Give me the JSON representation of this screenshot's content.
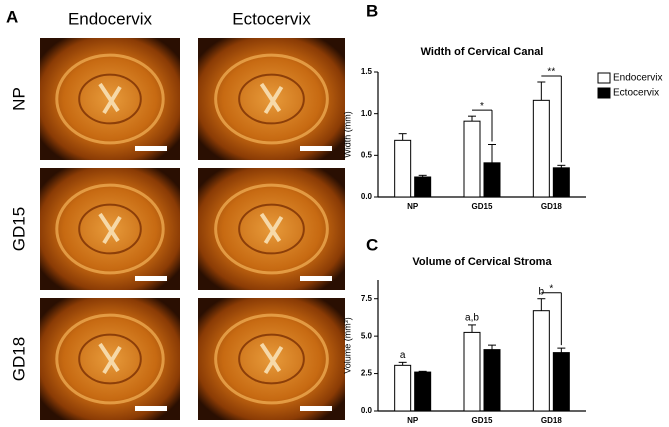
{
  "panel_labels": [
    "A",
    "B",
    "C"
  ],
  "image_grid": {
    "columns": [
      "Endocervix",
      "Ectocervix"
    ],
    "rows": [
      "NP",
      "GD15",
      "GD18"
    ]
  },
  "chart_data": [
    {
      "type": "bar",
      "title": "Width of Cervical Canal",
      "ylabel": "Width (mm)",
      "categories": [
        "NP",
        "GD15",
        "GD18"
      ],
      "series": [
        {
          "name": "Endocervix",
          "color": "#ffffff",
          "values": [
            0.68,
            0.91,
            1.16
          ],
          "errors": [
            0.08,
            0.06,
            0.22
          ]
        },
        {
          "name": "Ectocervix",
          "color": "#000000",
          "values": [
            0.24,
            0.41,
            0.35
          ],
          "errors": [
            0.02,
            0.22,
            0.03
          ]
        }
      ],
      "significance": [
        null,
        "*",
        "**"
      ],
      "ylim": [
        0,
        1.5
      ],
      "yticks": [
        {
          "value": 0,
          "label": "0.0"
        },
        0.5,
        {
          "value": 1,
          "label": "1.0"
        },
        1.5
      ],
      "legend": "top-right"
    },
    {
      "type": "bar",
      "title": "Volume of Cervical Stroma",
      "ylabel": "Volume (mm³)",
      "categories": [
        "NP",
        "GD15",
        "GD18"
      ],
      "series": [
        {
          "color": "#ffffff",
          "values": [
            3.05,
            5.25,
            6.7
          ],
          "errors": [
            0.2,
            0.5,
            0.8
          ]
        },
        {
          "color": "#000000",
          "values": [
            2.6,
            4.1,
            3.9
          ],
          "errors": [
            0.05,
            0.3,
            0.3
          ]
        }
      ],
      "letters": [
        "a",
        "a,b",
        "b"
      ],
      "significance": [
        null,
        null,
        "*"
      ],
      "ylim": [
        0,
        8.75
      ],
      "yticks": [
        {
          "value": 0,
          "label": "0.0"
        },
        2.5,
        {
          "value": 5,
          "label": "5.0"
        },
        7.5
      ]
    }
  ]
}
